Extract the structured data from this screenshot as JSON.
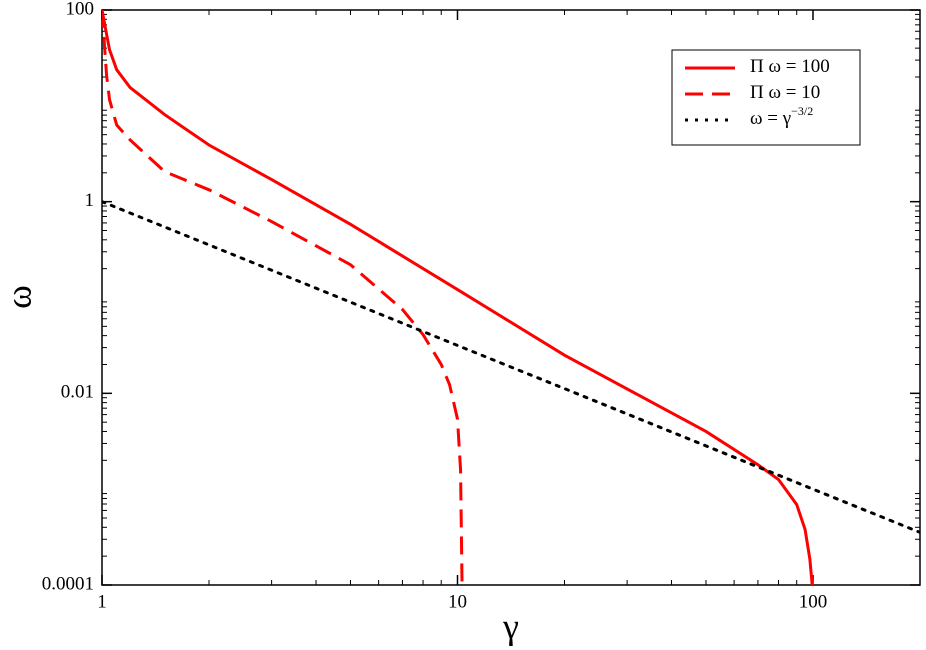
{
  "chart_data": {
    "type": "line",
    "x_label": "γ",
    "y_label": "ω",
    "x_log": true,
    "y_log": true,
    "xlim": [
      1,
      200
    ],
    "ylim": [
      0.0001,
      100
    ],
    "xticks": [
      1,
      10,
      100
    ],
    "yticks": [
      0.0001,
      0.01,
      1,
      100
    ],
    "legend": "top-right",
    "series": [
      {
        "name": "Π ω = 100",
        "color": "#ff0000",
        "dash": "solid",
        "x": [
          1,
          1.05,
          1.1,
          1.2,
          1.5,
          2,
          3,
          5,
          10,
          20,
          50,
          70,
          80,
          90,
          95,
          98,
          99.5
        ],
        "values": [
          100,
          38.5,
          23.8,
          15.5,
          8.1,
          3.9,
          1.7,
          0.58,
          0.121,
          0.025,
          0.004,
          0.0018,
          0.00126,
          0.00069,
          0.00038,
          0.000186,
          0.0001
        ]
      },
      {
        "name": "Π ω = 10",
        "color": "#ff0000",
        "dash": "dashed",
        "x": [
          1,
          1.03,
          1.05,
          1.1,
          1.2,
          1.5,
          2,
          3,
          5,
          7,
          8,
          9,
          9.5,
          10,
          10.2,
          10.3
        ],
        "values": [
          100,
          21,
          11.6,
          6.3,
          4.4,
          2.06,
          1.33,
          0.62,
          0.22,
          0.075,
          0.041,
          0.02,
          0.0123,
          0.0054,
          0.0016,
          0.0001
        ]
      },
      {
        "name": "ω = γ",
        "name_superscript": "−3/2",
        "color": "#000000",
        "dash": "dotted",
        "x": [
          1,
          2,
          5,
          10,
          20,
          50,
          100,
          200
        ],
        "values": [
          1,
          0.354,
          0.0894,
          0.0316,
          0.0112,
          0.00283,
          0.001,
          0.000354
        ]
      }
    ]
  }
}
